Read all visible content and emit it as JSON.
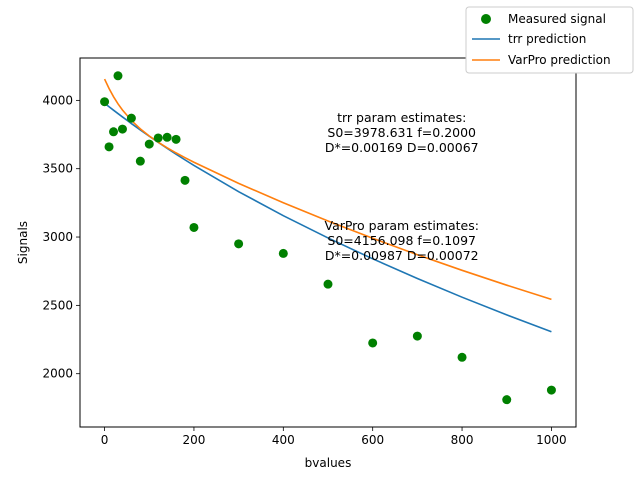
{
  "chart_data": {
    "type": "scatter",
    "xlabel": "bvalues",
    "ylabel": "Signals",
    "xlim": [
      -55,
      1055
    ],
    "ylim": [
      1610,
      4310
    ],
    "x_ticks": [
      0,
      200,
      400,
      600,
      800,
      1000
    ],
    "x_tick_labels": [
      "0",
      "200",
      "400",
      "600",
      "800",
      "1000"
    ],
    "y_ticks": [
      2000,
      2500,
      3000,
      3500,
      4000
    ],
    "y_tick_labels": [
      "2000",
      "2500",
      "3000",
      "3500",
      "4000"
    ],
    "grid": false,
    "legend_position": "top-right",
    "series": [
      {
        "name": "Measured signal",
        "kind": "scatter",
        "color": "#008000",
        "x": [
          0,
          10,
          20,
          30,
          40,
          60,
          80,
          100,
          120,
          140,
          160,
          180,
          200,
          300,
          400,
          500,
          600,
          700,
          800,
          900,
          1000
        ],
        "y": [
          3990,
          3660,
          3770,
          4180,
          3790,
          3870,
          3555,
          3680,
          3725,
          3730,
          3715,
          3415,
          3070,
          2950,
          2880,
          2655,
          2225,
          2275,
          2120,
          1810,
          1880
        ]
      },
      {
        "name": "trr prediction",
        "kind": "line",
        "color": "#1f77b4",
        "model": {
          "S0": 3978.631,
          "f": 0.2,
          "Dstar": 0.00169,
          "D": 0.00067
        },
        "x": [
          0,
          10,
          20,
          30,
          40,
          60,
          80,
          100,
          120,
          140,
          160,
          180,
          200,
          300,
          400,
          500,
          600,
          700,
          800,
          900,
          1000
        ],
        "y": [
          3978.6,
          3953.3,
          3928.2,
          3903.4,
          3878.7,
          3830.3,
          3783.3,
          3737.4,
          3692.6,
          3649.0,
          3606.3,
          3564.6,
          3523.9,
          3331.9,
          3156.3,
          2993.3,
          2840.6,
          2696.4,
          2559.8,
          2430.2,
          2307.1
        ]
      },
      {
        "name": "VarPro prediction",
        "kind": "line",
        "color": "#ff7f0e",
        "model": {
          "S0": 4156.098,
          "f": 0.1097,
          "Dstar": 0.00987,
          "D": 0.00072
        },
        "x": [
          0,
          10,
          20,
          30,
          40,
          60,
          80,
          100,
          120,
          140,
          160,
          180,
          200,
          300,
          400,
          500,
          600,
          700,
          800,
          900,
          1000
        ],
        "y": [
          4156.1,
          4086.9,
          4027.0,
          3975.0,
          3929.5,
          3853.4,
          3791.4,
          3739.3,
          3693.9,
          3653.2,
          3615.7,
          3580.6,
          3547.1,
          3392.8,
          3251.0,
          3117.4,
          2990.9,
          2870.7,
          2756.5,
          2647.7,
          2544.1
        ]
      }
    ],
    "annotations": [
      {
        "id": "trr",
        "x": 665,
        "y": 3760,
        "lines": [
          "trr param estimates:",
          "S0=3978.631 f=0.2000",
          "D*=0.00169 D=0.00067"
        ]
      },
      {
        "id": "varpro",
        "x": 665,
        "y": 2970,
        "lines": [
          "VarPro param estimates:",
          "S0=4156.098 f=0.1097",
          "D*=0.00987 D=0.00072"
        ]
      }
    ]
  }
}
